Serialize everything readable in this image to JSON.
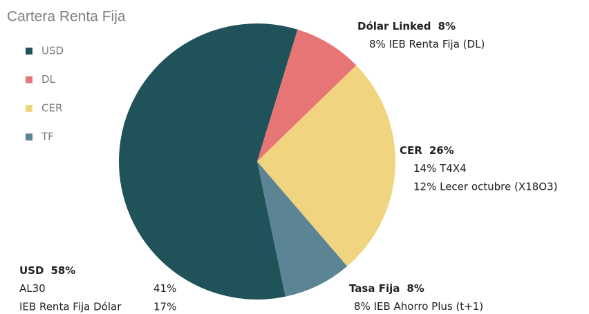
{
  "chart_data": {
    "type": "pie",
    "title": "Cartera Renta Fija",
    "categories": [
      "USD",
      "DL",
      "CER",
      "TF"
    ],
    "values": [
      58,
      8,
      26,
      8
    ],
    "value_labels": [
      "58%",
      "8%",
      "26%",
      "8%"
    ],
    "colors": [
      "#1f5259",
      "#e87575",
      "#f0d47f",
      "#5b8494"
    ],
    "slice_labels": [
      "USD",
      "Dólar Linked",
      "CER",
      "Tasa Fija"
    ],
    "details": [
      [
        {
          "name": "AL30",
          "value_label": "41%"
        },
        {
          "name": "IEB Renta Fija Dólar",
          "value_label": "17%"
        }
      ],
      [
        "8% IEB Renta Fija (DL)"
      ],
      [
        "14% T4X4",
        "12% Lecer octubre (X18O3)"
      ],
      [
        "8% IEB Ahorro Plus (t+1)"
      ]
    ],
    "legend": "top-left"
  }
}
